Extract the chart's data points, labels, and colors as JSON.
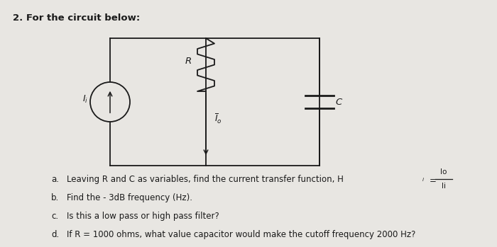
{
  "title": "2. For the circuit below:",
  "bg_color": "#e8e6e2",
  "text_color": "#1a1a1a",
  "circuit": {
    "source_label": "I_i",
    "resistor_label": "R",
    "output_label": "I_o",
    "cap_label": "C"
  },
  "q_a": "Leaving R and C as variables, find the current transfer function, H",
  "q_b": "Find the - 3dB frequency (Hz).",
  "q_c": "Is this a low pass or high pass filter?",
  "q_d": "If R = 1000 ohms, what value capacitor would make the cutoff frequency 2000 Hz?"
}
